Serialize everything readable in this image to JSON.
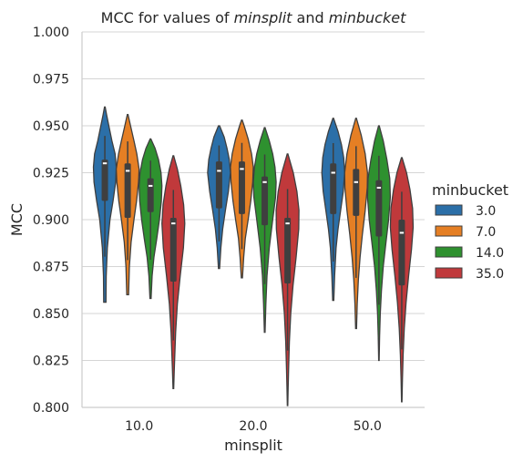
{
  "chart_data": {
    "type": "violin",
    "title_parts": [
      {
        "text": "MCC for values of ",
        "italic": false
      },
      {
        "text": "minsplit",
        "italic": true
      },
      {
        "text": " and ",
        "italic": false
      },
      {
        "text": "minbucket",
        "italic": true
      }
    ],
    "xlabel": "minsplit",
    "ylabel": "MCC",
    "ylim": [
      0.8,
      1.0
    ],
    "yticks": [
      "0.800",
      "0.825",
      "0.850",
      "0.875",
      "0.900",
      "0.925",
      "0.950",
      "0.975",
      "1.000"
    ],
    "categories": [
      "10.0",
      "20.0",
      "50.0"
    ],
    "grid": "horizontal",
    "legend_title": "minbucket",
    "legend_placement": "right",
    "series": [
      {
        "name": "3.0",
        "color": "#2b6fa8"
      },
      {
        "name": "7.0",
        "color": "#e57f24"
      },
      {
        "name": "14.0",
        "color": "#2e912f"
      },
      {
        "name": "35.0",
        "color": "#c0393b"
      }
    ],
    "violins": [
      {
        "category": "10.0",
        "series": "3.0",
        "min": 0.856,
        "max": 0.96,
        "q1": 0.91,
        "median": 0.93,
        "q3": 0.932,
        "profile": [
          [
            0.856,
            0.1
          ],
          [
            0.87,
            0.12
          ],
          [
            0.885,
            0.22
          ],
          [
            0.9,
            0.45
          ],
          [
            0.91,
            0.72
          ],
          [
            0.92,
            0.95
          ],
          [
            0.928,
            1.0
          ],
          [
            0.935,
            0.9
          ],
          [
            0.942,
            0.62
          ],
          [
            0.95,
            0.35
          ],
          [
            0.956,
            0.15
          ],
          [
            0.96,
            0.03
          ]
        ]
      },
      {
        "category": "10.0",
        "series": "7.0",
        "min": 0.86,
        "max": 0.956,
        "q1": 0.901,
        "median": 0.926,
        "q3": 0.93,
        "profile": [
          [
            0.86,
            0.08
          ],
          [
            0.875,
            0.15
          ],
          [
            0.888,
            0.3
          ],
          [
            0.9,
            0.55
          ],
          [
            0.91,
            0.78
          ],
          [
            0.92,
            0.95
          ],
          [
            0.927,
            1.0
          ],
          [
            0.935,
            0.8
          ],
          [
            0.942,
            0.55
          ],
          [
            0.95,
            0.25
          ],
          [
            0.956,
            0.03
          ]
        ]
      },
      {
        "category": "10.0",
        "series": "14.0",
        "min": 0.858,
        "max": 0.943,
        "q1": 0.904,
        "median": 0.918,
        "q3": 0.922,
        "profile": [
          [
            0.858,
            0.05
          ],
          [
            0.87,
            0.14
          ],
          [
            0.88,
            0.3
          ],
          [
            0.89,
            0.55
          ],
          [
            0.9,
            0.78
          ],
          [
            0.91,
            0.95
          ],
          [
            0.918,
            1.0
          ],
          [
            0.925,
            0.92
          ],
          [
            0.932,
            0.7
          ],
          [
            0.938,
            0.4
          ],
          [
            0.943,
            0.03
          ]
        ]
      },
      {
        "category": "10.0",
        "series": "35.0",
        "min": 0.81,
        "max": 0.934,
        "q1": 0.867,
        "median": 0.898,
        "q3": 0.901,
        "profile": [
          [
            0.81,
            0.03
          ],
          [
            0.82,
            0.08
          ],
          [
            0.83,
            0.14
          ],
          [
            0.84,
            0.2
          ],
          [
            0.855,
            0.35
          ],
          [
            0.87,
            0.6
          ],
          [
            0.885,
            0.88
          ],
          [
            0.898,
            1.0
          ],
          [
            0.908,
            0.9
          ],
          [
            0.918,
            0.65
          ],
          [
            0.927,
            0.35
          ],
          [
            0.934,
            0.03
          ]
        ]
      },
      {
        "category": "20.0",
        "series": "3.0",
        "min": 0.874,
        "max": 0.95,
        "q1": 0.906,
        "median": 0.926,
        "q3": 0.931,
        "profile": [
          [
            0.874,
            0.05
          ],
          [
            0.885,
            0.16
          ],
          [
            0.895,
            0.32
          ],
          [
            0.905,
            0.56
          ],
          [
            0.915,
            0.82
          ],
          [
            0.925,
            1.0
          ],
          [
            0.932,
            0.9
          ],
          [
            0.938,
            0.7
          ],
          [
            0.944,
            0.45
          ],
          [
            0.95,
            0.05
          ]
        ]
      },
      {
        "category": "20.0",
        "series": "7.0",
        "min": 0.869,
        "max": 0.953,
        "q1": 0.903,
        "median": 0.927,
        "q3": 0.931,
        "profile": [
          [
            0.869,
            0.05
          ],
          [
            0.88,
            0.16
          ],
          [
            0.89,
            0.3
          ],
          [
            0.9,
            0.55
          ],
          [
            0.91,
            0.78
          ],
          [
            0.92,
            0.95
          ],
          [
            0.928,
            1.0
          ],
          [
            0.935,
            0.85
          ],
          [
            0.943,
            0.55
          ],
          [
            0.95,
            0.2
          ],
          [
            0.953,
            0.03
          ]
        ]
      },
      {
        "category": "20.0",
        "series": "14.0",
        "min": 0.84,
        "max": 0.949,
        "q1": 0.897,
        "median": 0.92,
        "q3": 0.923,
        "profile": [
          [
            0.84,
            0.03
          ],
          [
            0.855,
            0.1
          ],
          [
            0.87,
            0.2
          ],
          [
            0.885,
            0.4
          ],
          [
            0.9,
            0.7
          ],
          [
            0.912,
            0.95
          ],
          [
            0.92,
            1.0
          ],
          [
            0.928,
            0.9
          ],
          [
            0.935,
            0.7
          ],
          [
            0.942,
            0.4
          ],
          [
            0.949,
            0.03
          ]
        ]
      },
      {
        "category": "20.0",
        "series": "35.0",
        "min": 0.801,
        "max": 0.935,
        "q1": 0.866,
        "median": 0.898,
        "q3": 0.901,
        "profile": [
          [
            0.801,
            0.02
          ],
          [
            0.81,
            0.05
          ],
          [
            0.82,
            0.09
          ],
          [
            0.835,
            0.16
          ],
          [
            0.85,
            0.28
          ],
          [
            0.865,
            0.48
          ],
          [
            0.88,
            0.75
          ],
          [
            0.895,
            0.98
          ],
          [
            0.905,
            1.0
          ],
          [
            0.915,
            0.82
          ],
          [
            0.925,
            0.5
          ],
          [
            0.935,
            0.03
          ]
        ]
      },
      {
        "category": "50.0",
        "series": "3.0",
        "min": 0.857,
        "max": 0.954,
        "q1": 0.903,
        "median": 0.925,
        "q3": 0.93,
        "profile": [
          [
            0.857,
            0.05
          ],
          [
            0.87,
            0.12
          ],
          [
            0.885,
            0.25
          ],
          [
            0.895,
            0.42
          ],
          [
            0.905,
            0.65
          ],
          [
            0.915,
            0.88
          ],
          [
            0.925,
            1.0
          ],
          [
            0.933,
            0.92
          ],
          [
            0.94,
            0.72
          ],
          [
            0.947,
            0.42
          ],
          [
            0.954,
            0.03
          ]
        ]
      },
      {
        "category": "50.0",
        "series": "7.0",
        "min": 0.842,
        "max": 0.954,
        "q1": 0.902,
        "median": 0.92,
        "q3": 0.927,
        "profile": [
          [
            0.842,
            0.04
          ],
          [
            0.855,
            0.1
          ],
          [
            0.868,
            0.2
          ],
          [
            0.88,
            0.35
          ],
          [
            0.892,
            0.55
          ],
          [
            0.905,
            0.8
          ],
          [
            0.917,
            0.98
          ],
          [
            0.925,
            1.0
          ],
          [
            0.935,
            0.8
          ],
          [
            0.945,
            0.45
          ],
          [
            0.954,
            0.03
          ]
        ]
      },
      {
        "category": "50.0",
        "series": "14.0",
        "min": 0.825,
        "max": 0.95,
        "q1": 0.891,
        "median": 0.917,
        "q3": 0.921,
        "profile": [
          [
            0.825,
            0.02
          ],
          [
            0.838,
            0.06
          ],
          [
            0.85,
            0.12
          ],
          [
            0.862,
            0.22
          ],
          [
            0.875,
            0.38
          ],
          [
            0.888,
            0.62
          ],
          [
            0.9,
            0.85
          ],
          [
            0.912,
            1.0
          ],
          [
            0.922,
            0.95
          ],
          [
            0.932,
            0.7
          ],
          [
            0.942,
            0.38
          ],
          [
            0.95,
            0.03
          ]
        ]
      },
      {
        "category": "50.0",
        "series": "35.0",
        "min": 0.803,
        "max": 0.933,
        "q1": 0.865,
        "median": 0.893,
        "q3": 0.9,
        "profile": [
          [
            0.803,
            0.02
          ],
          [
            0.815,
            0.06
          ],
          [
            0.828,
            0.12
          ],
          [
            0.842,
            0.22
          ],
          [
            0.856,
            0.38
          ],
          [
            0.87,
            0.6
          ],
          [
            0.884,
            0.85
          ],
          [
            0.896,
            1.0
          ],
          [
            0.906,
            0.95
          ],
          [
            0.916,
            0.72
          ],
          [
            0.925,
            0.42
          ],
          [
            0.933,
            0.03
          ]
        ]
      }
    ]
  }
}
